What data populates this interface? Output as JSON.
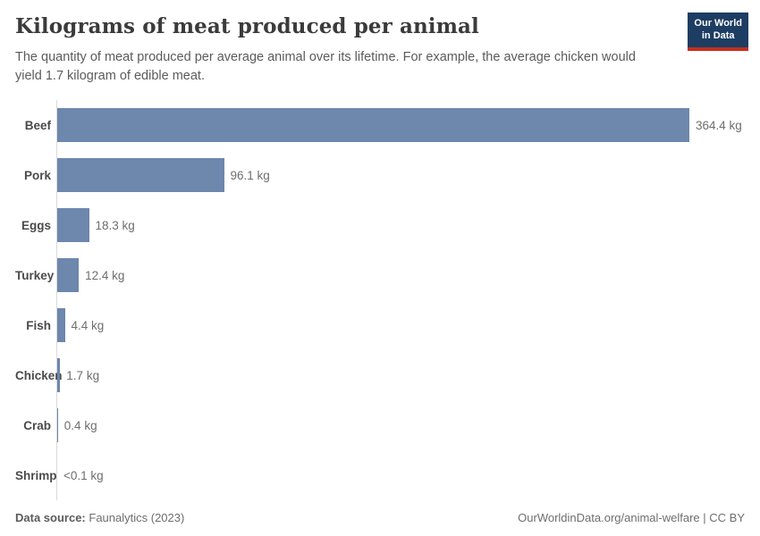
{
  "header": {
    "title": "Kilograms of meat produced per animal",
    "subtitle": "The quantity of meat produced per average animal over its lifetime. For example, the average chicken would yield 1.7 kilogram of edible meat.",
    "logo": {
      "line1": "Our World",
      "line2": "in Data",
      "bg_color": "#1d3d63",
      "accent_color": "#c5301f",
      "text_color": "#ffffff"
    }
  },
  "chart_data": {
    "type": "bar",
    "orientation": "horizontal",
    "title": "Kilograms of meat produced per animal",
    "xlabel": "",
    "ylabel": "",
    "categories": [
      "Beef",
      "Pork",
      "Eggs",
      "Turkey",
      "Fish",
      "Chicken",
      "Crab",
      "Shrimp"
    ],
    "values": [
      364.4,
      96.1,
      18.3,
      12.4,
      4.4,
      1.7,
      0.4,
      0.05
    ],
    "value_labels": [
      "364.4 kg",
      "96.1 kg",
      "18.3 kg",
      "12.4 kg",
      "4.4 kg",
      "1.7 kg",
      "0.4 kg",
      "<0.1 kg"
    ],
    "unit": "kg",
    "xlim": [
      0,
      380
    ],
    "grid": false,
    "legend": false,
    "bar_color": "#6d87ad",
    "axis_color": "#dadada",
    "category_label_color": "#4a4a4a",
    "value_label_color": "#6e6e6e"
  },
  "footer": {
    "source_label": "Data source:",
    "source_value": "Faunalytics (2023)",
    "credit": "OurWorldinData.org/animal-welfare | CC BY"
  }
}
